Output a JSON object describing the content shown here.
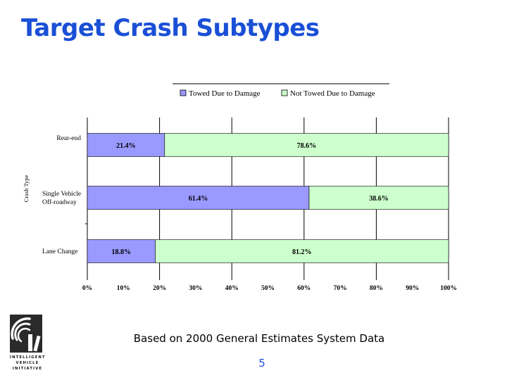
{
  "slide": {
    "title": "Target Crash Subtypes",
    "caption": "Based on 2000 General Estimates System Data",
    "page_number": "5"
  },
  "logo": {
    "line1": "INTELLIGENT",
    "line2": "VEHICLE",
    "line3": "INITIATIVE"
  },
  "chart_data": {
    "type": "bar",
    "orientation": "horizontal",
    "stacked": true,
    "percent_stacked": true,
    "ylabel": "Crash Type",
    "categories": [
      "Rear-end",
      "Single Vehicle Off-roadway",
      "Lane Change"
    ],
    "category_lines": [
      [
        "Rear-end"
      ],
      [
        "Single Vehicle",
        "Off-roadway"
      ],
      [
        "Lane Change"
      ]
    ],
    "series": [
      {
        "name": "Towed Due to Damage",
        "values": [
          21.4,
          61.4,
          18.8
        ],
        "labels": [
          "21.4%",
          "61.4%",
          "18.8%"
        ],
        "color": "#9999ff"
      },
      {
        "name": "Not Towed Due to Damage",
        "values": [
          78.6,
          38.6,
          81.2
        ],
        "labels": [
          "78.6%",
          "38.6%",
          "81.2%"
        ],
        "color": "#ccffcc"
      }
    ],
    "xlim": [
      0,
      100
    ],
    "xticks": [
      0,
      10,
      20,
      30,
      40,
      50,
      60,
      70,
      80,
      90,
      100
    ],
    "xtick_labels": [
      "0%",
      "10%",
      "20%",
      "30%",
      "40%",
      "50%",
      "60%",
      "70%",
      "80%",
      "90%",
      "100%"
    ],
    "grid": "vertical",
    "legend_position": "top",
    "colors": {
      "border": "#000000",
      "grid": "#000000"
    }
  }
}
